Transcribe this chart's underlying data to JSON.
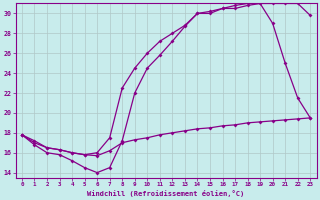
{
  "xlabel": "Windchill (Refroidissement éolien,°C)",
  "xlim": [
    -0.5,
    23.5
  ],
  "ylim": [
    13.5,
    31.0
  ],
  "yticks": [
    14,
    16,
    18,
    20,
    22,
    24,
    26,
    28,
    30
  ],
  "xticks": [
    0,
    1,
    2,
    3,
    4,
    5,
    6,
    7,
    8,
    9,
    10,
    11,
    12,
    13,
    14,
    15,
    16,
    17,
    18,
    19,
    20,
    21,
    22,
    23
  ],
  "bg_color": "#c8ecec",
  "line_color": "#880088",
  "grid_color": "#b0c8c8",
  "line1_x": [
    0,
    1,
    2,
    3,
    4,
    5,
    6,
    7,
    8,
    9,
    10,
    11,
    12,
    13,
    14,
    15,
    16,
    17,
    18,
    19,
    20,
    21,
    22,
    23
  ],
  "line1_y": [
    17.8,
    16.8,
    16.0,
    15.8,
    15.2,
    14.5,
    14.0,
    14.5,
    17.2,
    22.0,
    24.5,
    25.8,
    27.2,
    28.7,
    30.0,
    30.0,
    30.5,
    30.5,
    30.8,
    31.0,
    29.0,
    25.0,
    21.5,
    19.5
  ],
  "line2_x": [
    0,
    1,
    2,
    3,
    4,
    5,
    6,
    7,
    8,
    9,
    10,
    11,
    12,
    13,
    14,
    15,
    16,
    17,
    18,
    19,
    20,
    21,
    22,
    23
  ],
  "line2_y": [
    17.8,
    17.0,
    16.5,
    16.3,
    16.0,
    15.8,
    16.0,
    17.5,
    22.5,
    24.5,
    26.0,
    27.2,
    28.0,
    28.8,
    30.0,
    30.2,
    30.5,
    30.8,
    31.0,
    31.0,
    31.0,
    31.0,
    31.0,
    29.8
  ],
  "line3_x": [
    0,
    1,
    2,
    3,
    4,
    5,
    6,
    7,
    8,
    9,
    10,
    11,
    12,
    13,
    14,
    15,
    16,
    17,
    18,
    19,
    20,
    21,
    22,
    23
  ],
  "line3_y": [
    17.8,
    17.2,
    16.5,
    16.3,
    16.0,
    15.8,
    15.7,
    16.2,
    17.0,
    17.3,
    17.5,
    17.8,
    18.0,
    18.2,
    18.4,
    18.5,
    18.7,
    18.8,
    19.0,
    19.1,
    19.2,
    19.3,
    19.4,
    19.5
  ]
}
